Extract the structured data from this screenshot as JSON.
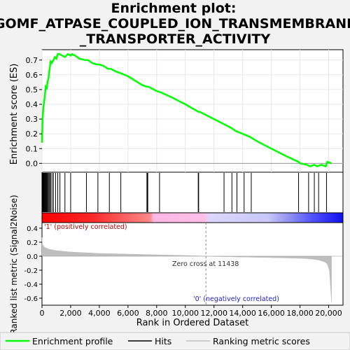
{
  "chart_data": {
    "type": "line",
    "title_lines": [
      "Enrichment plot:",
      "GOMF_ATPASE_COUPLED_ION_TRANSMEMBRANE",
      "_TRANSPORTER_ACTIVITY"
    ],
    "xlabel": "Rank in Ordered Dataset",
    "ylabel_top": "Enrichment score (ES)",
    "ylabel_bottom": "Ranked list metric (Signal2Noise)",
    "xlim": [
      0,
      21000
    ],
    "x_ticks": [
      0,
      2000,
      4000,
      6000,
      8000,
      10000,
      12000,
      14000,
      16000,
      18000,
      20000
    ],
    "x_tick_labels": [
      "0",
      "2,000",
      "4,000",
      "6,000",
      "8,000",
      "10,000",
      "12,000",
      "14,000",
      "16,000",
      "18,000",
      "20,000"
    ],
    "es_ylim": [
      -0.06,
      0.77
    ],
    "es_ticks": [
      0.0,
      0.1,
      0.2,
      0.3,
      0.4,
      0.5,
      0.6,
      0.7
    ],
    "es_tick_labels": [
      "0.0",
      "0.1",
      "0.2",
      "0.3",
      "0.4",
      "0.5",
      "0.6",
      "0.7"
    ],
    "metric_ylim": [
      -0.7,
      0.48
    ],
    "metric_ticks": [
      0.4,
      0.2,
      0.0,
      -0.2,
      -0.4,
      -0.6
    ],
    "metric_tick_labels": [
      "0.4",
      "0.2",
      "0.0",
      "-0.2",
      "-0.4",
      "-0.6"
    ],
    "series": [
      {
        "name": "Enrichment profile",
        "color": "#00ff00",
        "x": [
          0,
          40,
          90,
          150,
          200,
          260,
          330,
          380,
          460,
          520,
          600,
          680,
          800,
          900,
          1000,
          1100,
          1200,
          1400,
          1600,
          1800,
          2000,
          2100,
          2300,
          2600,
          3000,
          3200,
          3500,
          3800,
          4000,
          4300,
          4600,
          4800,
          5200,
          5500,
          6000,
          6500,
          7000,
          7300,
          7400,
          7600,
          8000,
          8300,
          9000,
          10000,
          10900,
          11000,
          12000,
          12600,
          13200,
          13500,
          14000,
          14500,
          15000,
          16000,
          17000,
          17900,
          18000,
          18500,
          18700,
          19000,
          19200,
          19500,
          19800,
          19900,
          20200
        ],
        "y": [
          0.14,
          0.3,
          0.37,
          0.42,
          0.46,
          0.52,
          0.51,
          0.55,
          0.58,
          0.63,
          0.69,
          0.68,
          0.7,
          0.72,
          0.71,
          0.74,
          0.74,
          0.73,
          0.72,
          0.74,
          0.73,
          0.74,
          0.73,
          0.71,
          0.7,
          0.7,
          0.68,
          0.67,
          0.67,
          0.66,
          0.64,
          0.64,
          0.62,
          0.61,
          0.59,
          0.56,
          0.53,
          0.52,
          0.52,
          0.51,
          0.49,
          0.48,
          0.45,
          0.4,
          0.35,
          0.35,
          0.3,
          0.27,
          0.24,
          0.22,
          0.2,
          0.18,
          0.15,
          0.1,
          0.05,
          0.01,
          0.0,
          -0.01,
          -0.02,
          -0.01,
          -0.02,
          -0.01,
          -0.02,
          0.01,
          0.0
        ]
      },
      {
        "name": "Hits",
        "color": "#000000",
        "x": [
          15,
          40,
          70,
          100,
          130,
          160,
          200,
          240,
          280,
          320,
          360,
          420,
          480,
          540,
          600,
          700,
          800,
          950,
          1100,
          1250,
          1600,
          2000,
          3100,
          3900,
          4700,
          5500,
          7320,
          7350,
          7380,
          8200,
          10900,
          10930,
          12700,
          13250,
          13600,
          14100,
          14600,
          17900,
          18600,
          19000,
          19300,
          19850
        ]
      },
      {
        "name": "Ranking metric scores",
        "color": "#bebebe",
        "x": [
          0,
          20,
          60,
          120,
          250,
          500,
          1000,
          2000,
          3000,
          4000,
          5000,
          6000,
          7000,
          8000,
          9000,
          10000,
          11000,
          11438,
          12000,
          13000,
          14000,
          15000,
          16000,
          17000,
          18000,
          18500,
          19000,
          19400,
          19700,
          19900,
          20050,
          20100,
          20150,
          20200
        ],
        "y": [
          0.27,
          0.2,
          0.16,
          0.14,
          0.12,
          0.1,
          0.08,
          0.06,
          0.05,
          0.04,
          0.035,
          0.03,
          0.025,
          0.02,
          0.015,
          0.01,
          0.004,
          0.0,
          -0.004,
          -0.008,
          -0.012,
          -0.016,
          -0.02,
          -0.025,
          -0.03,
          -0.035,
          -0.045,
          -0.06,
          -0.08,
          -0.11,
          -0.2,
          -0.35,
          -0.5,
          -0.65
        ]
      }
    ],
    "zero_cross_label": "Zero cross at 11438",
    "zero_cross_x": 11438,
    "pos_label": "'1' (positively correlated)",
    "neg_label": "'0' (negatively correlated)",
    "legend_placement": "bottom",
    "legend": [
      "Enrichment profile",
      "Hits",
      "Ranking metric scores"
    ]
  }
}
